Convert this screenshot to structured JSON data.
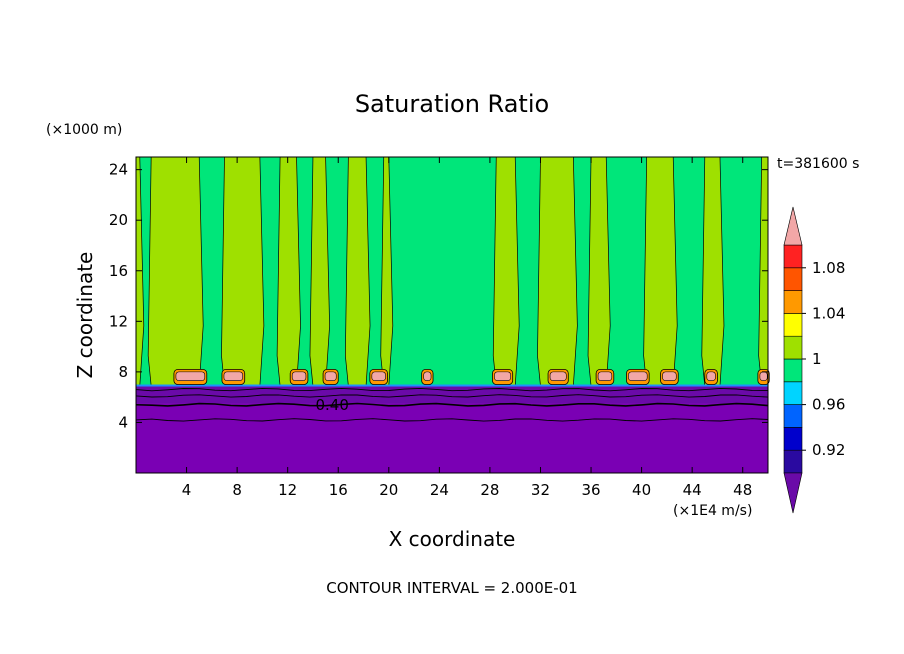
{
  "chart_data": {
    "type": "heatmap",
    "title": "Saturation Ratio",
    "xlabel": "X coordinate",
    "ylabel": "Z coordinate",
    "x_unit": "(×1E4 m/s)",
    "y_unit": "(×1000 m)",
    "time_label": "t=381600 s",
    "footer": "CONTOUR INTERVAL = 2.000E-01",
    "xlim": [
      0,
      50
    ],
    "ylim": [
      0,
      25
    ],
    "x_ticks": [
      "4",
      "8",
      "12",
      "16",
      "20",
      "24",
      "28",
      "32",
      "36",
      "40",
      "44",
      "48"
    ],
    "x_tick_values": [
      4,
      8,
      12,
      16,
      20,
      24,
      28,
      32,
      36,
      40,
      44,
      48
    ],
    "y_ticks": [
      "4",
      "8",
      "12",
      "16",
      "20",
      "24"
    ],
    "y_tick_values": [
      4,
      8,
      12,
      16,
      20,
      24
    ],
    "contour_label": "0.40",
    "colorbar": {
      "labels": [
        "1.08",
        "1.04",
        "1",
        "0.96",
        "0.92"
      ],
      "label_values": [
        1.08,
        1.04,
        1.0,
        0.96,
        0.92
      ],
      "colors": [
        "#6a0aa8",
        "#2a0aa0",
        "#0000cc",
        "#0064ff",
        "#00d4ff",
        "#00e67a",
        "#9fe000",
        "#ffff00",
        "#ff9900",
        "#ff5500",
        "#ff2222",
        "#f2a7a7"
      ]
    },
    "layers": [
      {
        "from": 0,
        "to": 5.5,
        "color": "#7a00b4"
      },
      {
        "from": 5.5,
        "to": 6.9,
        "color": "#6a0aa8"
      },
      {
        "from": 6.9,
        "to": 25,
        "color": "#9fe000"
      }
    ],
    "moist_columns": [
      {
        "x0": 0.3,
        "x1": 1.2
      },
      {
        "x0": 5.0,
        "x1": 7.0
      },
      {
        "x0": 9.8,
        "x1": 11.4
      },
      {
        "x0": 12.7,
        "x1": 14.0
      },
      {
        "x0": 15.0,
        "x1": 16.8
      },
      {
        "x0": 18.2,
        "x1": 19.6
      },
      {
        "x0": 20.0,
        "x1": 28.5
      },
      {
        "x0": 30.0,
        "x1": 32.0
      },
      {
        "x0": 34.6,
        "x1": 36.0
      },
      {
        "x0": 37.2,
        "x1": 40.4
      },
      {
        "x0": 42.5,
        "x1": 45.0
      },
      {
        "x0": 46.2,
        "x1": 49.5
      }
    ],
    "supersat_cells": [
      {
        "x": 3.0,
        "w": 2.6
      },
      {
        "x": 6.8,
        "w": 1.8
      },
      {
        "x": 12.2,
        "w": 1.4
      },
      {
        "x": 14.8,
        "w": 1.2
      },
      {
        "x": 18.5,
        "w": 1.4
      },
      {
        "x": 22.6,
        "w": 0.9
      },
      {
        "x": 28.2,
        "w": 1.6
      },
      {
        "x": 32.6,
        "w": 1.6
      },
      {
        "x": 36.4,
        "w": 1.4
      },
      {
        "x": 38.8,
        "w": 1.8
      },
      {
        "x": 41.5,
        "w": 1.4
      },
      {
        "x": 45.0,
        "w": 1.0
      },
      {
        "x": 49.2,
        "w": 0.9
      }
    ]
  }
}
